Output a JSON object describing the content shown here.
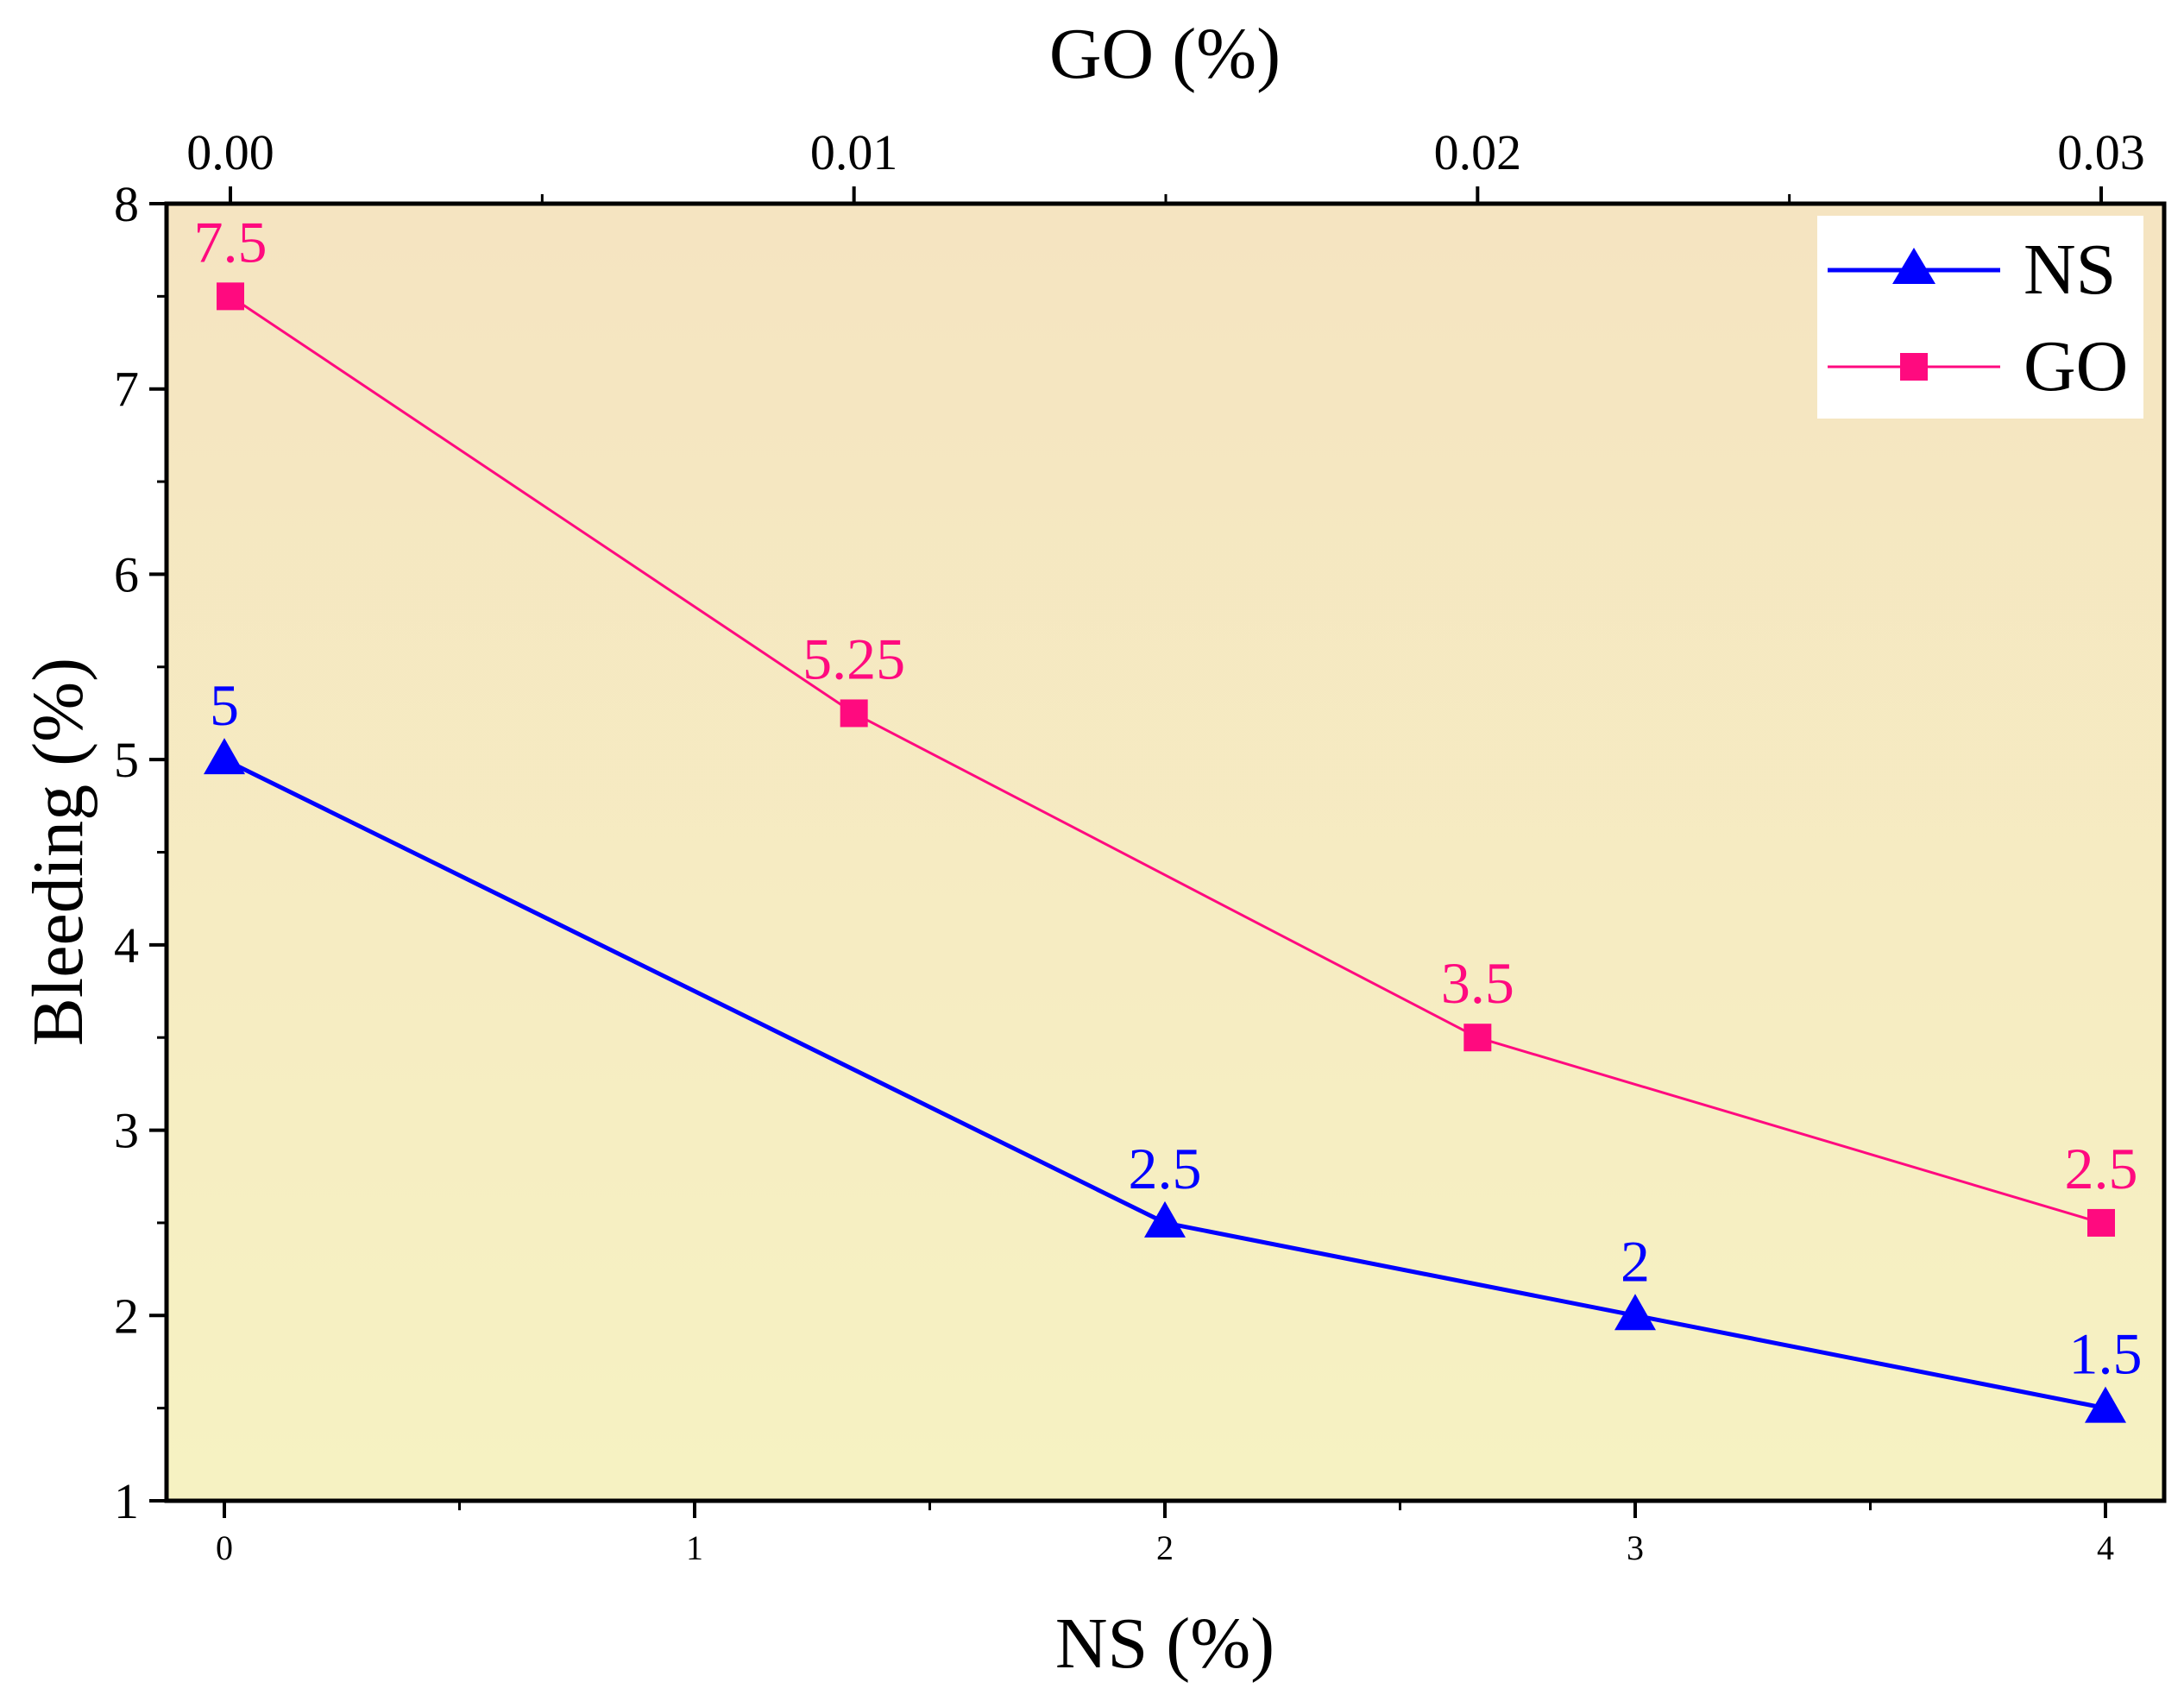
{
  "chart_data": {
    "type": "line",
    "title": "",
    "xlabel": "NS (%)",
    "x2label": "GO (%)",
    "ylabel": "Bleeding (%)",
    "xlim": [
      0,
      4
    ],
    "x2lim": [
      0,
      0.03
    ],
    "ylim": [
      1,
      8
    ],
    "xticks": [
      "0",
      "1",
      "2",
      "3",
      "4"
    ],
    "x2ticks": [
      "0.00",
      "0.01",
      "0.02",
      "0.03"
    ],
    "yticks": [
      "1",
      "2",
      "3",
      "4",
      "5",
      "6",
      "7",
      "8"
    ],
    "grid": false,
    "legend_position": "top-right",
    "background": {
      "top": "#f5e4c1",
      "bottom": "#f6f2c2"
    },
    "series": [
      {
        "name": "NS",
        "axis": "bottom",
        "marker": "triangle",
        "color": "#0000ff",
        "x": [
          0,
          2,
          3,
          4
        ],
        "y": [
          5,
          2.5,
          2,
          1.5
        ],
        "labels": [
          "5",
          "2.5",
          "2",
          "1.5"
        ]
      },
      {
        "name": "GO",
        "axis": "top",
        "marker": "square",
        "color": "#ff0a7f",
        "x": [
          0,
          0.01,
          0.02,
          0.03
        ],
        "y": [
          7.5,
          5.25,
          3.5,
          2.5
        ],
        "labels": [
          "7.5",
          "5.25",
          "3.5",
          "2.5"
        ]
      }
    ]
  }
}
